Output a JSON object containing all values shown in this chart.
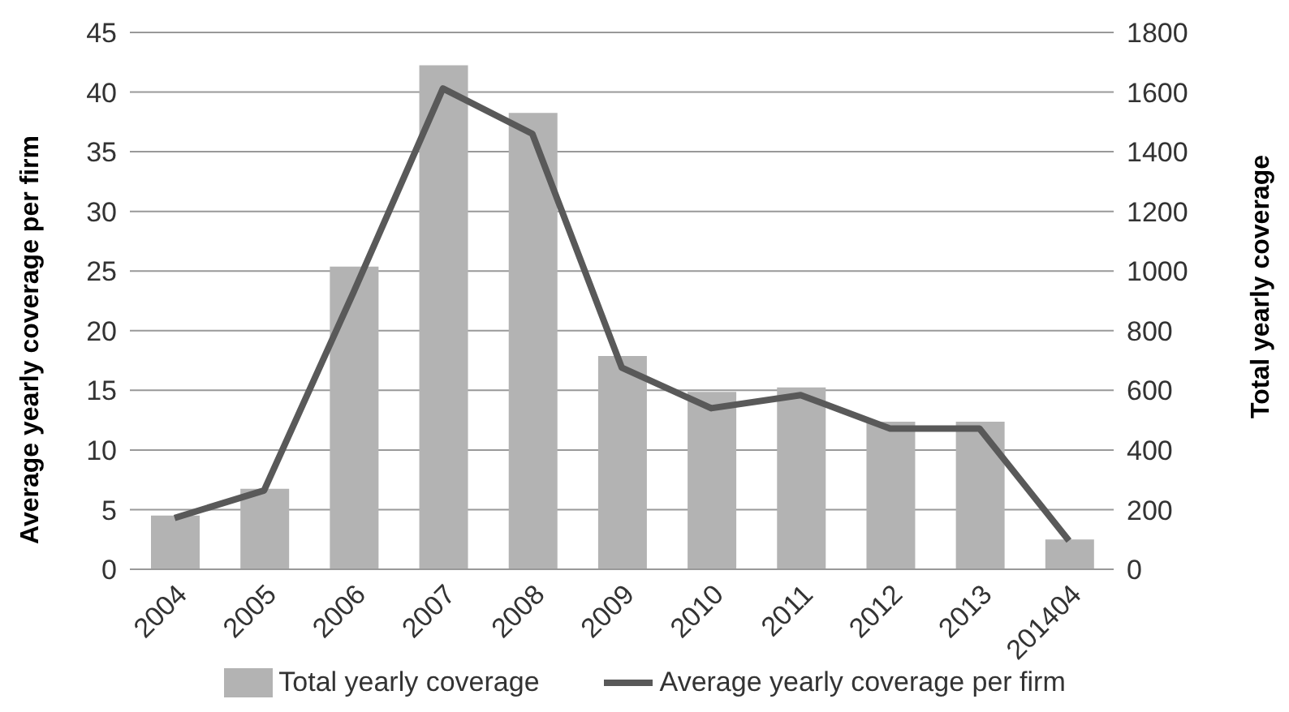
{
  "chart_data": {
    "type": "bar",
    "ylabel": "Average yearly coverage per firm",
    "y2label": "Total yearly coverage",
    "categories": [
      "2004",
      "2005",
      "2006",
      "2007",
      "2008",
      "2009",
      "2010",
      "2011",
      "2012",
      "2013",
      "201404"
    ],
    "series": [
      {
        "name": "Total yearly coverage",
        "axis": "y2",
        "color": "#b3b3b3",
        "values": [
          180,
          270,
          1015,
          1690,
          1530,
          715,
          595,
          610,
          495,
          495,
          100
        ]
      },
      {
        "name": "Average yearly coverage per firm",
        "type": "line",
        "axis": "y",
        "color": "#595959",
        "values": [
          4.3,
          6.6,
          23.2,
          40.3,
          36.5,
          16.9,
          13.5,
          14.6,
          11.8,
          11.8,
          2.4
        ]
      }
    ],
    "ylim": [
      0,
      45
    ],
    "yticks": [
      0,
      5,
      10,
      15,
      20,
      25,
      30,
      35,
      40,
      45
    ],
    "y2lim": [
      0,
      1800
    ],
    "y2ticks": [
      0,
      200,
      400,
      600,
      800,
      1000,
      1200,
      1400,
      1600,
      1800
    ],
    "grid": "y",
    "legend": "bottom",
    "marker": "none",
    "line_style": "solid"
  }
}
